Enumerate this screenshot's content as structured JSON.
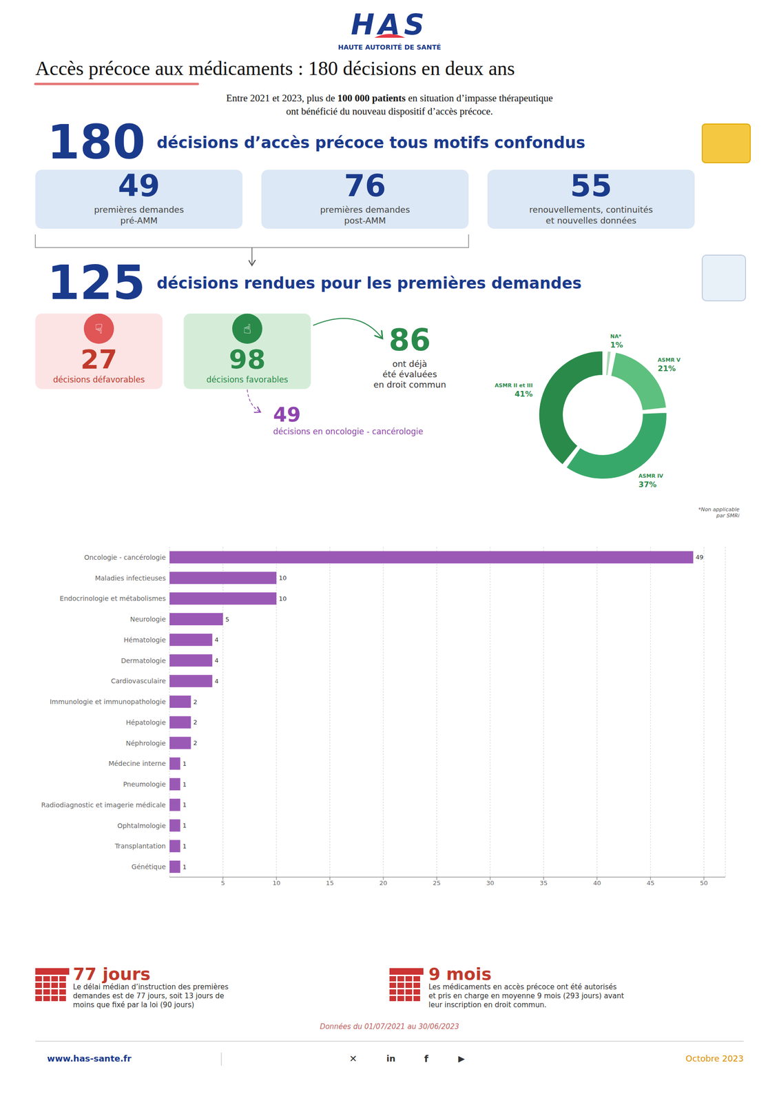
{
  "title": "Accès précoce aux médicaments : 180 décisions en deux ans",
  "subtitle": "HAUTE AUTORITÉ DE SANTÉ",
  "annotations": [
    "HAS",
    "Entre 2021 et 2023, plus de",
    "100 000 patients",
    "en situation d’impasse thérapeutique",
    "ont bénéficié du nouveau dispositif d’accès précoce.",
    "180",
    "décisions d’accès précoce tous motifs confondus",
    "49",
    "premières demandes",
    "pré-AMM",
    "76",
    "premières demandes",
    "post-AMM",
    "55",
    "renouvellements, continuités",
    "et nouvelles données",
    "125",
    "décisions rendues pour les premières demandes",
    "☟",
    "27",
    "décisions défavorables",
    "☝",
    "98",
    "décisions favorables",
    "86",
    "ont déjà",
    "été évaluées",
    "en droit commun",
    "49",
    "décisions en oncologie - cancérologie",
    "77 jours",
    "Le délai médian d’instruction des premières",
    "demandes est de 77 jours, soit 13 jours de",
    "moins que fixé par la loi (90 jours)",
    "9 mois",
    "Les médicaments en accès précoce ont été autorisés",
    "et pris en charge en moyenne 9 mois (293 jours) avant",
    "leur inscription en droit commun.",
    "Données du 01/07/2021 au 30/06/2023",
    "www.has-sante.fr",
    "✕",
    "in",
    "f",
    "▶",
    "Octobre 2023"
  ],
  "chart_data": [
    {
      "type": "donut",
      "categories": [
        "ASMR II et III",
        "ASMR IV",
        "ASMR V",
        "NA*"
      ],
      "values": [
        41,
        37,
        21,
        1
      ],
      "value_labels": [
        "41%",
        "37%",
        "21%",
        "1%"
      ],
      "colors": [
        "#2a8a4a",
        "#38a86a",
        "#5dc07e",
        "#a8d8b0"
      ],
      "data_labels": true,
      "annotations": [
        "*Non applicable\npar SMRi"
      ]
    },
    {
      "type": "bar",
      "orientation": "horizontal",
      "categories": [
        "Oncologie - cancérologie",
        "Maladies infectieuses",
        "Endocrinologie et métabolismes",
        "Neurologie",
        "Hématologie",
        "Dermatologie",
        "Cardiovasculaire",
        "Immunologie et immunopathologie",
        "Hépatologie",
        "Néphrologie",
        "Médecine interne",
        "Pneumologie",
        "Radiodiagnostic et imagerie médicale",
        "Ophtalmologie",
        "Transplantation",
        "Génétique"
      ],
      "values": [
        49,
        10,
        10,
        5,
        4,
        4,
        4,
        2,
        2,
        2,
        1,
        1,
        1,
        1,
        1,
        1
      ],
      "color": "#9b59b6",
      "xlim": [
        0,
        52
      ],
      "xticks": [
        5,
        10,
        15,
        20,
        25,
        30,
        35,
        40,
        45,
        50
      ],
      "grid": true,
      "data_labels": true
    }
  ]
}
